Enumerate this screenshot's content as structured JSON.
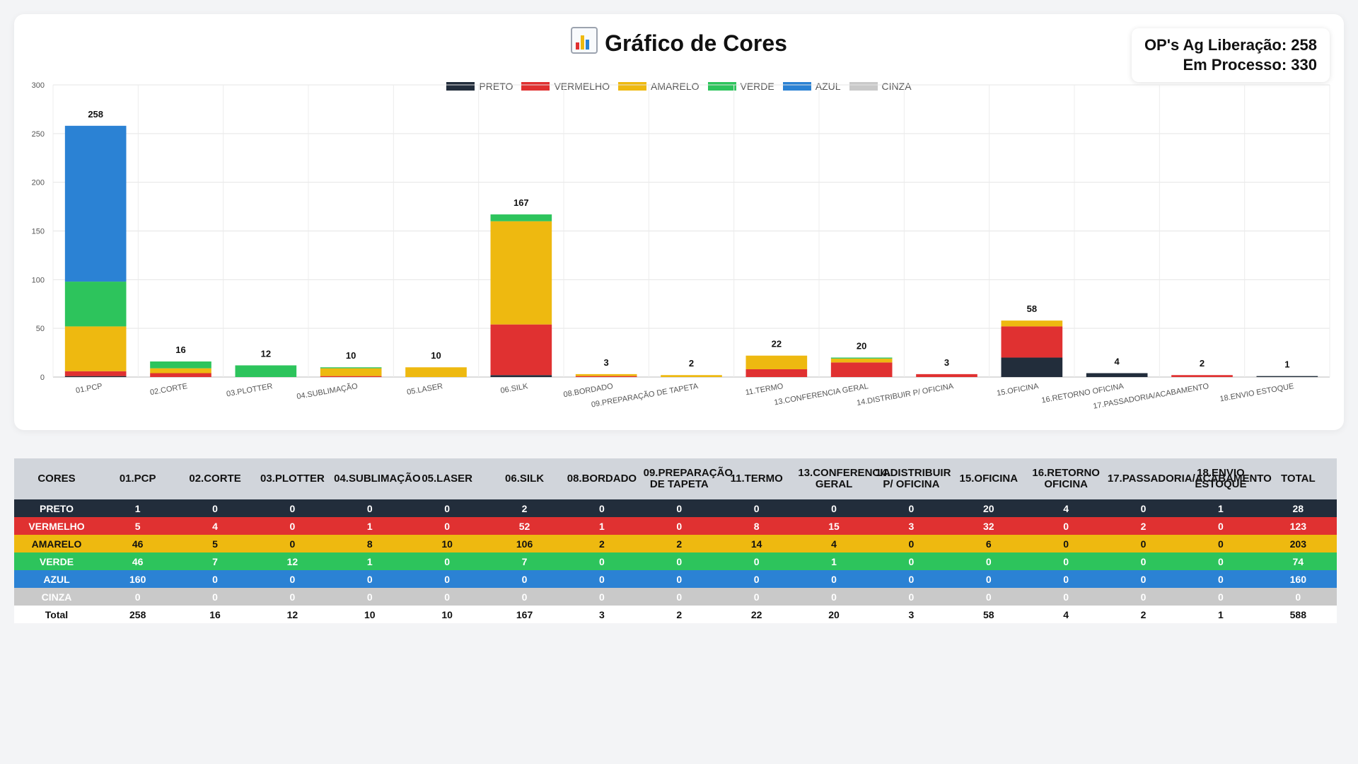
{
  "header": {
    "title": "Gráfico de Cores"
  },
  "stats": {
    "ag_liberacao": "OP's Ag Liberação: 258",
    "em_processo": "Em Processo: 330"
  },
  "colors": {
    "PRETO": "#222d3b",
    "VERMELHO": "#e03131",
    "AMARELO": "#eeb910",
    "VERDE": "#2dc45c",
    "AZUL": "#2b82d4",
    "CINZA": "#c9c9c9"
  },
  "chart_data": {
    "type": "bar",
    "stacked": true,
    "categories": [
      "01.PCP",
      "02.CORTE",
      "03.PLOTTER",
      "04.SUBLIMAÇÃO",
      "05.LASER",
      "06.SILK",
      "08.BORDADO",
      "09.PREPARAÇÃO DE TAPETA",
      "11.TERMO",
      "13.CONFERENCIA GERAL",
      "14.DISTRIBUIR P/ OFICINA",
      "15.OFICINA",
      "16.RETORNO OFICINA",
      "17.PASSADORIA/ACABAMENTO",
      "18.ENVIO ESTOQUE"
    ],
    "series": [
      {
        "name": "PRETO",
        "values": [
          1,
          0,
          0,
          0,
          0,
          2,
          0,
          0,
          0,
          0,
          0,
          20,
          4,
          0,
          1
        ]
      },
      {
        "name": "VERMELHO",
        "values": [
          5,
          4,
          0,
          1,
          0,
          52,
          1,
          0,
          8,
          15,
          3,
          32,
          0,
          2,
          0
        ]
      },
      {
        "name": "AMARELO",
        "values": [
          46,
          5,
          0,
          8,
          10,
          106,
          2,
          2,
          14,
          4,
          0,
          6,
          0,
          0,
          0
        ]
      },
      {
        "name": "VERDE",
        "values": [
          46,
          7,
          12,
          1,
          0,
          7,
          0,
          0,
          0,
          1,
          0,
          0,
          0,
          0,
          0
        ]
      },
      {
        "name": "AZUL",
        "values": [
          160,
          0,
          0,
          0,
          0,
          0,
          0,
          0,
          0,
          0,
          0,
          0,
          0,
          0,
          0
        ]
      },
      {
        "name": "CINZA",
        "values": [
          0,
          0,
          0,
          0,
          0,
          0,
          0,
          0,
          0,
          0,
          0,
          0,
          0,
          0,
          0
        ]
      }
    ],
    "totals": [
      258,
      16,
      12,
      10,
      10,
      167,
      3,
      2,
      22,
      20,
      3,
      58,
      4,
      2,
      1
    ],
    "ylim": [
      0,
      300
    ],
    "yticks": [
      0,
      50,
      100,
      150,
      200,
      250,
      300
    ],
    "grid": true,
    "legend": "top-center"
  },
  "table": {
    "headers": [
      "CORES",
      "01.PCP",
      "02.CORTE",
      "03.PLOTTER",
      "04.SUBLIMAÇÃO",
      "05.LASER",
      "06.SILK",
      "08.BORDADO",
      "09.PREPARAÇÃO DE TAPETA",
      "11.TERMO",
      "13.CONFERENCIA GERAL",
      "14.DISTRIBUIR P/ OFICINA",
      "15.OFICINA",
      "16.RETORNO OFICINA",
      "17.PASSADORIA/ACABAMENTO",
      "18.ENVIO ESTOQUE",
      "TOTAL"
    ],
    "rows": [
      {
        "label": "PRETO",
        "values": [
          1,
          0,
          0,
          0,
          0,
          2,
          0,
          0,
          0,
          0,
          0,
          20,
          4,
          0,
          1
        ],
        "total": 28
      },
      {
        "label": "VERMELHO",
        "values": [
          5,
          4,
          0,
          1,
          0,
          52,
          1,
          0,
          8,
          15,
          3,
          32,
          0,
          2,
          0
        ],
        "total": 123
      },
      {
        "label": "AMARELO",
        "values": [
          46,
          5,
          0,
          8,
          10,
          106,
          2,
          2,
          14,
          4,
          0,
          6,
          0,
          0,
          0
        ],
        "total": 203
      },
      {
        "label": "VERDE",
        "values": [
          46,
          7,
          12,
          1,
          0,
          7,
          0,
          0,
          0,
          1,
          0,
          0,
          0,
          0,
          0
        ],
        "total": 74
      },
      {
        "label": "AZUL",
        "values": [
          160,
          0,
          0,
          0,
          0,
          0,
          0,
          0,
          0,
          0,
          0,
          0,
          0,
          0,
          0
        ],
        "total": 160
      },
      {
        "label": "CINZA",
        "values": [
          0,
          0,
          0,
          0,
          0,
          0,
          0,
          0,
          0,
          0,
          0,
          0,
          0,
          0,
          0
        ],
        "total": 0
      }
    ],
    "total_row": {
      "label": "Total",
      "values": [
        258,
        16,
        12,
        10,
        10,
        167,
        3,
        2,
        22,
        20,
        3,
        58,
        4,
        2,
        1
      ],
      "total": 588
    }
  }
}
